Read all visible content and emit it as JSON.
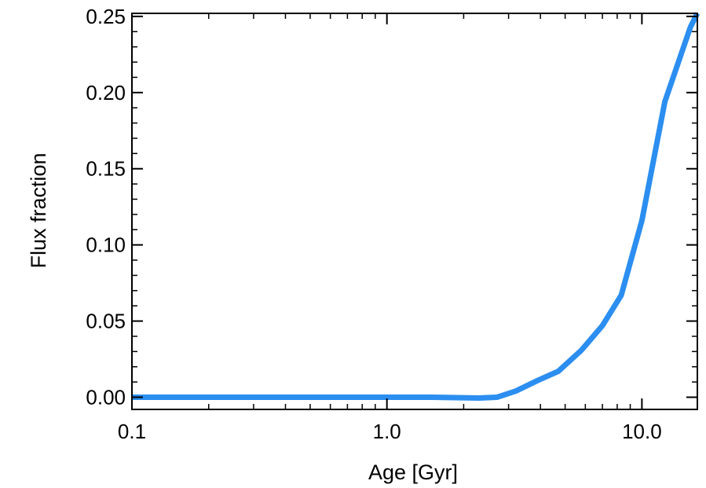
{
  "chart_data": {
    "type": "line",
    "xlabel": "Age [Gyr]",
    "ylabel": "Flux fraction",
    "x_scale": "log",
    "xlim": [
      0.1,
      16.5
    ],
    "ylim": [
      -0.008,
      0.252
    ],
    "x_ticks": [
      0.1,
      1.0,
      10.0
    ],
    "x_tick_labels": [
      "0.1",
      "1.0",
      "10.0"
    ],
    "y_ticks": [
      0.0,
      0.05,
      0.1,
      0.15,
      0.2,
      0.25
    ],
    "y_tick_labels": [
      "0.00",
      "0.05",
      "0.10",
      "0.15",
      "0.20",
      "0.25"
    ],
    "grid": false,
    "series": [
      {
        "color": "#2b8ef0",
        "x": [
          0.1,
          0.3,
          0.6,
          1.0,
          1.5,
          2.3,
          2.7,
          3.2,
          3.9,
          4.7,
          5.8,
          7.0,
          8.3,
          10.0,
          12.3,
          15.5,
          16.5
        ],
        "y": [
          0.0,
          0.0,
          0.0,
          0.0,
          0.0,
          -0.0005,
          0.0,
          0.004,
          0.011,
          0.017,
          0.031,
          0.047,
          0.067,
          0.116,
          0.194,
          0.243,
          0.252
        ]
      }
    ]
  }
}
